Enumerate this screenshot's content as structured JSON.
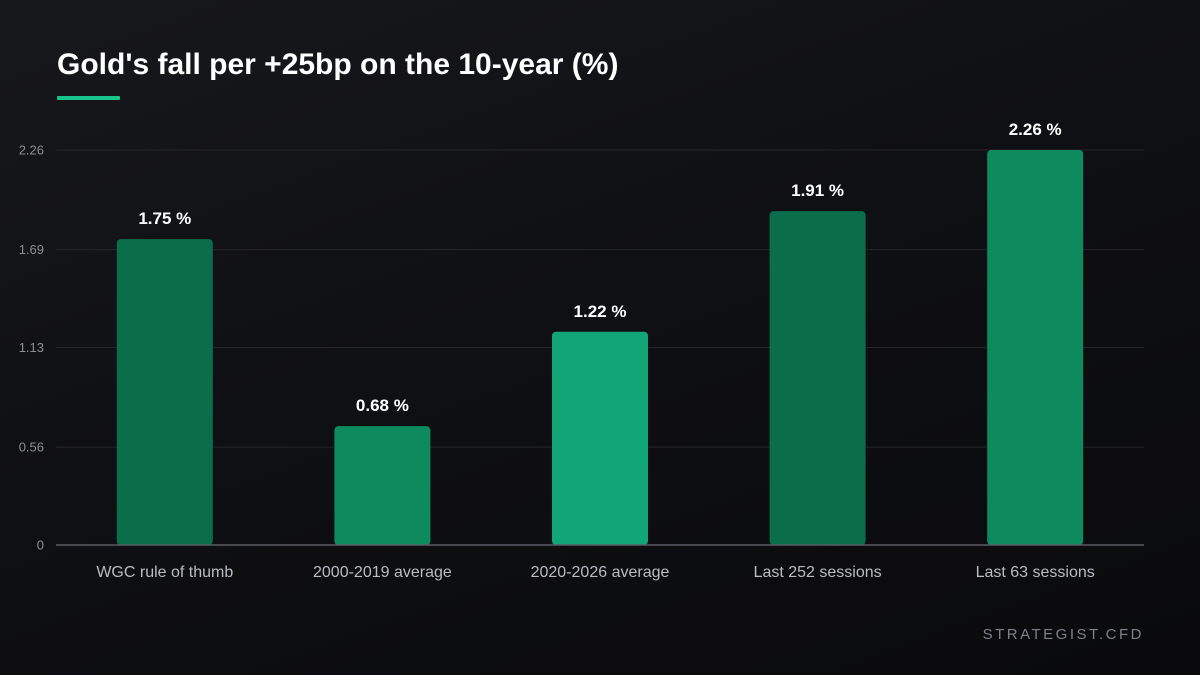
{
  "chart_data": {
    "type": "bar",
    "title": "Gold's fall per +25bp on the 10-year (%)",
    "categories": [
      "WGC rule of thumb",
      "2000-2019 average",
      "2020-2026 average",
      "Last 252 sessions",
      "Last 63 sessions"
    ],
    "values": [
      1.75,
      0.68,
      1.22,
      1.91,
      2.26
    ],
    "value_labels": [
      "1.75 %",
      "0.68 %",
      "1.22 %",
      "1.91 %",
      "2.26 %"
    ],
    "bar_colors": [
      "#0b6e4a",
      "#0e8a5f",
      "#10a676",
      "#0b6e4a",
      "#0e8a5f"
    ],
    "y_ticks": [
      0,
      0.56,
      1.13,
      1.69,
      2.26
    ],
    "y_tick_labels": [
      "0",
      "0.56",
      "1.13",
      "1.69",
      "2.26"
    ],
    "ylim": [
      0,
      2.26
    ],
    "xlabel": "",
    "ylabel": "",
    "grid": true,
    "legend": "none"
  },
  "branding": {
    "watermark": "STRATEGIST.CFD"
  },
  "colors": {
    "accent": "#17c48a",
    "background": "#111215",
    "gridline": "#24262b",
    "axis": "#5a5d64"
  }
}
